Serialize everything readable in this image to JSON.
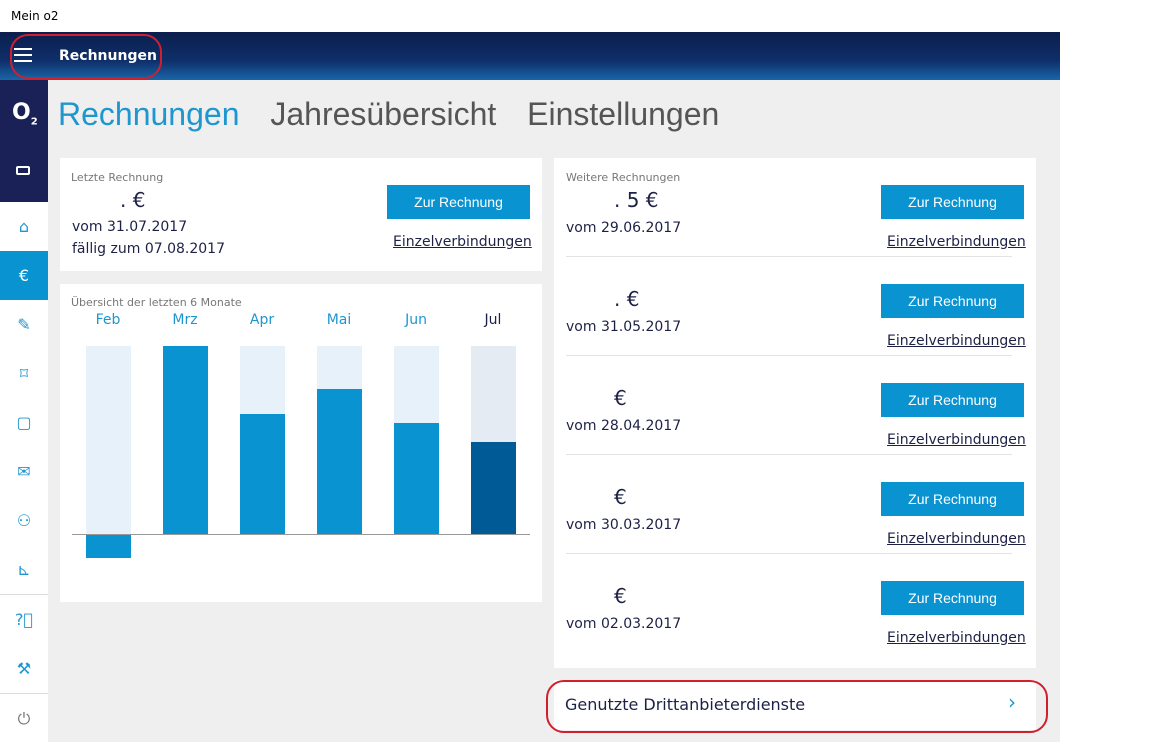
{
  "window_title": "Mein o2",
  "header": {
    "title": "Rechnungen"
  },
  "sidebar": {
    "logo": "O2",
    "icons": [
      "sim-card-icon",
      "home-icon",
      "invoice-icon",
      "pen-icon",
      "tag-icon",
      "bag-icon",
      "mail-icon",
      "user-icon",
      "trolley-icon",
      "help-icon",
      "wrench-icon",
      "power-icon"
    ],
    "active": "invoice-icon"
  },
  "tabs": [
    {
      "label": "Rechnungen",
      "active": true
    },
    {
      "label": "Jahresübersicht"
    },
    {
      "label": "Einstellungen"
    }
  ],
  "latest": {
    "label": "Letzte Rechnung",
    "amount": ". €",
    "date": "vom 31.07.2017",
    "due": "fällig zum 07.08.2017",
    "button": "Zur Rechnung",
    "link": "Einzelverbindungen"
  },
  "chart_data": {
    "type": "bar",
    "title": "Übersicht der letzten 6 Monate",
    "categories": [
      "Feb",
      "Mrz",
      "Apr",
      "Mai",
      "Jun",
      "Jul"
    ],
    "values": [
      -0.13,
      1.0,
      0.64,
      0.77,
      0.59,
      0.49
    ],
    "ylim": [
      -0.2,
      1.0
    ],
    "colors": {
      "fill": "#0a93d1",
      "current": "#005a96",
      "track": "#e6f1f9",
      "current_track": "#e4ebf3"
    }
  },
  "further": {
    "label": "Weitere Rechnungen",
    "items": [
      {
        "amount": ". 5 €",
        "date": "vom 29.06.2017",
        "button": "Zur Rechnung",
        "link": "Einzelverbindungen"
      },
      {
        "amount": ". €",
        "date": "vom 31.05.2017",
        "button": "Zur Rechnung",
        "link": "Einzelverbindungen"
      },
      {
        "amount": "€",
        "date": "vom 28.04.2017",
        "button": "Zur Rechnung",
        "link": "Einzelverbindungen"
      },
      {
        "amount": "€",
        "date": "vom 30.03.2017",
        "button": "Zur Rechnung",
        "link": "Einzelverbindungen"
      },
      {
        "amount": "€",
        "date": "vom 02.03.2017",
        "button": "Zur Rechnung",
        "link": "Einzelverbindungen"
      }
    ]
  },
  "third_party": {
    "label": "Genutzte Drittanbieterdienste",
    "chevron": "›"
  }
}
